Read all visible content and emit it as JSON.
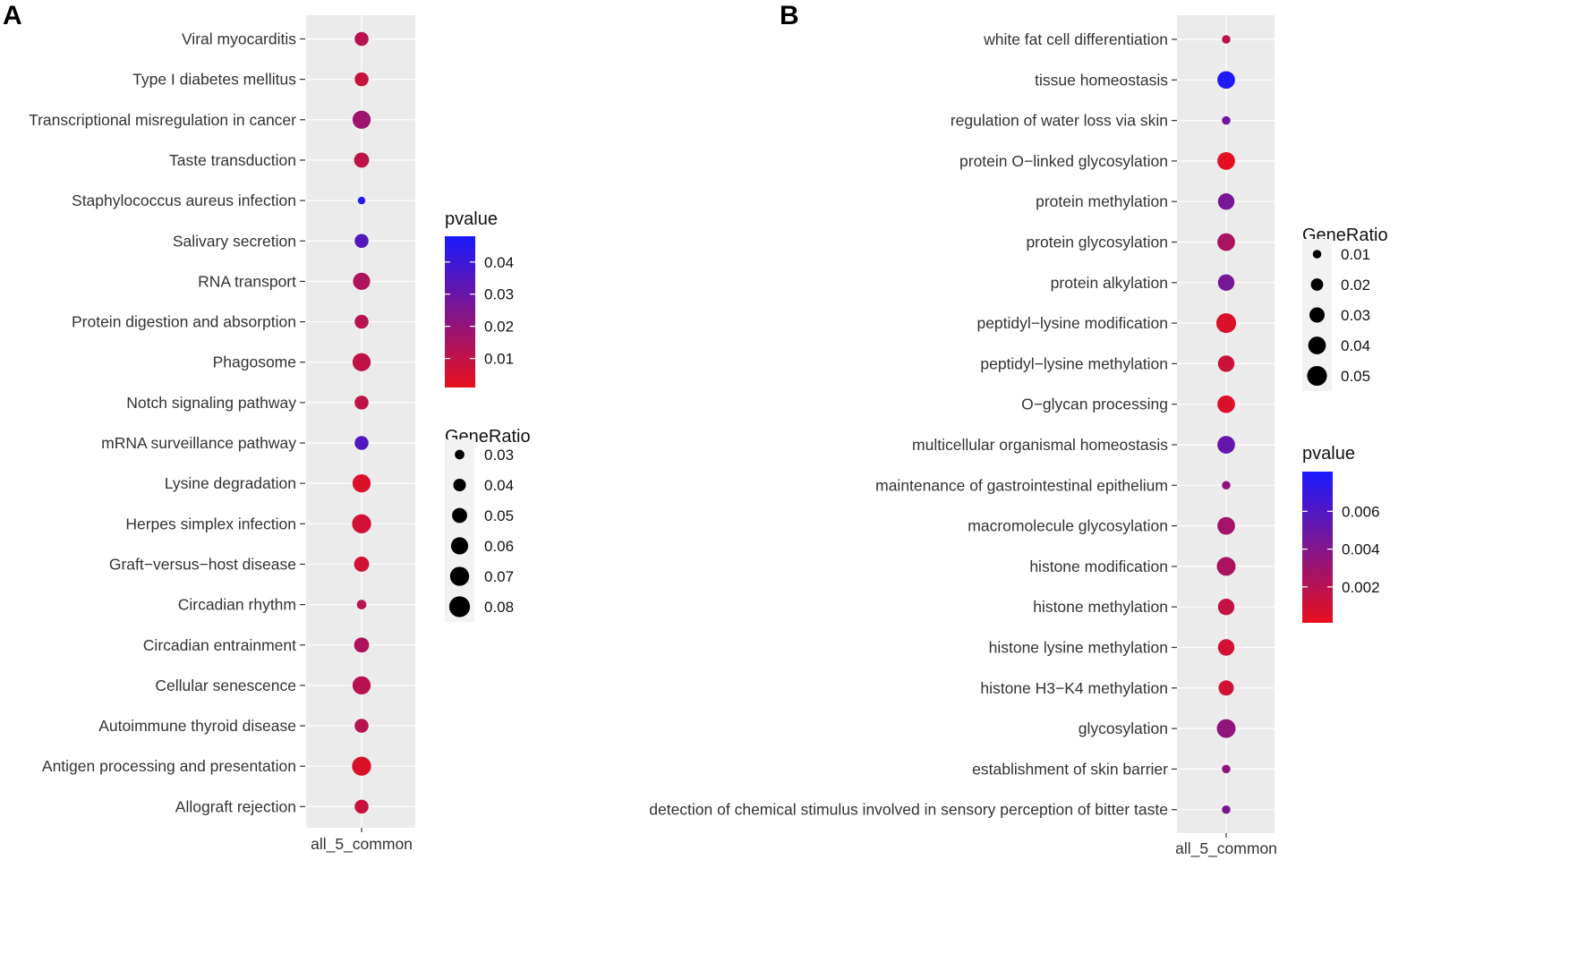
{
  "colors": {
    "panel_bg": "#ebebeb",
    "grid": "#ffffff",
    "low": "#e8101c",
    "high": "#1a1aff",
    "axis_tick": "#333333"
  },
  "chart_data": [
    {
      "type": "scatter",
      "panel_label": "A",
      "title": "",
      "xlabel": "",
      "ylabel": "",
      "x_categories": [
        "all_5_common"
      ],
      "terms": [
        "Viral myocarditis",
        "Type I diabetes mellitus",
        "Transcriptional misregulation in cancer",
        "Taste transduction",
        "Staphylococcus aureus infection",
        "Salivary secretion",
        "RNA transport",
        "Protein digestion and absorption",
        "Phagosome",
        "Notch signaling pathway",
        "mRNA surveillance pathway",
        "Lysine degradation",
        "Herpes simplex infection",
        "Graft−versus−host disease",
        "Circadian rhythm",
        "Circadian entrainment",
        "Cellular senescence",
        "Autoimmune thyroid disease",
        "Antigen processing and presentation",
        "Allograft rejection"
      ],
      "gene_ratio": [
        0.045,
        0.045,
        0.065,
        0.05,
        0.025,
        0.045,
        0.06,
        0.045,
        0.065,
        0.045,
        0.045,
        0.065,
        0.07,
        0.05,
        0.03,
        0.05,
        0.065,
        0.045,
        0.07,
        0.045
      ],
      "pvalue": [
        0.012,
        0.008,
        0.018,
        0.01,
        0.045,
        0.035,
        0.014,
        0.012,
        0.01,
        0.01,
        0.035,
        0.004,
        0.006,
        0.006,
        0.012,
        0.014,
        0.012,
        0.012,
        0.004,
        0.008
      ],
      "color_legend": {
        "title": "pvalue",
        "ticks": [
          "0.01",
          "0.02",
          "0.03",
          "0.04"
        ],
        "tick_values": [
          0.01,
          0.02,
          0.03,
          0.04
        ],
        "range": [
          0.001,
          0.048
        ]
      },
      "size_legend": {
        "title": "GeneRatio",
        "ticks": [
          "0.03",
          "0.04",
          "0.05",
          "0.06",
          "0.07",
          "0.08"
        ],
        "tick_values": [
          0.03,
          0.04,
          0.05,
          0.06,
          0.07,
          0.08
        ],
        "range": [
          0.025,
          0.08
        ]
      }
    },
    {
      "type": "scatter",
      "panel_label": "B",
      "title": "",
      "xlabel": "",
      "ylabel": "",
      "x_categories": [
        "all_5_common"
      ],
      "terms": [
        "white fat cell differentiation",
        "tissue homeostasis",
        "regulation of water loss via skin",
        "protein O−linked glycosylation",
        "protein methylation",
        "protein glycosylation",
        "protein alkylation",
        "peptidyl−lysine modification",
        "peptidyl−lysine methylation",
        "O−glycan processing",
        "multicellular organismal homeostasis",
        "maintenance of gastrointestinal epithelium",
        "macromolecule glycosylation",
        "histone modification",
        "histone methylation",
        "histone lysine methylation",
        "histone H3−K4 methylation",
        "glycosylation",
        "establishment of skin barrier",
        "detection of chemical stimulus involved in sensory perception of bitter taste"
      ],
      "gene_ratio": [
        0.01,
        0.04,
        0.01,
        0.04,
        0.035,
        0.04,
        0.035,
        0.05,
        0.035,
        0.04,
        0.04,
        0.01,
        0.04,
        0.045,
        0.035,
        0.035,
        0.03,
        0.045,
        0.01,
        0.01
      ],
      "pvalue": [
        0.0018,
        0.0079,
        0.0048,
        0.0003,
        0.0045,
        0.0025,
        0.0045,
        0.0006,
        0.0012,
        0.0006,
        0.0052,
        0.0035,
        0.0028,
        0.0025,
        0.0015,
        0.0009,
        0.0009,
        0.0035,
        0.0035,
        0.0042
      ],
      "color_legend": {
        "title": "pvalue",
        "ticks": [
          "0.002",
          "0.004",
          "0.006"
        ],
        "tick_values": [
          0.002,
          0.004,
          0.006
        ],
        "range": [
          0.0001,
          0.0081
        ]
      },
      "size_legend": {
        "title": "GeneRatio",
        "ticks": [
          "0.01",
          "0.02",
          "0.03",
          "0.04",
          "0.05"
        ],
        "tick_values": [
          0.01,
          0.02,
          0.03,
          0.04,
          0.05
        ],
        "range": [
          0.008,
          0.055
        ]
      }
    }
  ]
}
